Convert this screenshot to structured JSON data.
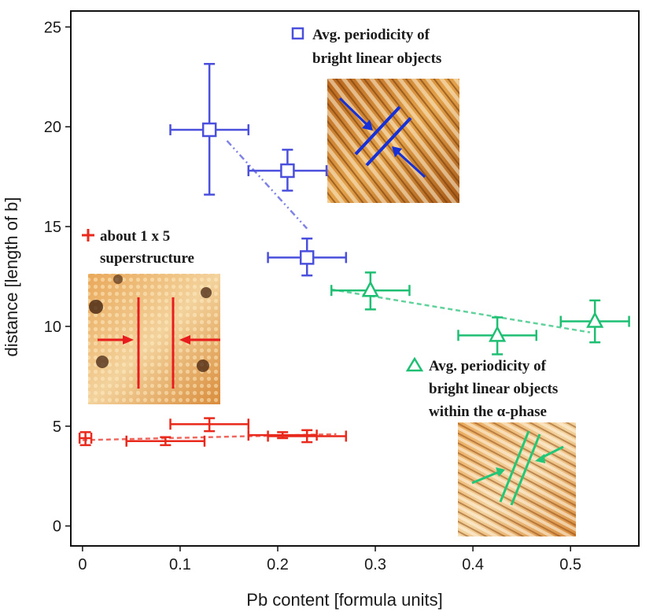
{
  "chart_data": {
    "type": "scatter",
    "xlabel": "Pb content [formula units]",
    "ylabel": "distance [length of b]",
    "xlim": [
      -0.012,
      0.57
    ],
    "ylim": [
      -1.0,
      25.8
    ],
    "xticks": [
      0,
      0.1,
      0.2,
      0.3,
      0.4,
      0.5
    ],
    "xtick_labels": [
      "0",
      "0.1",
      "0.2",
      "0.3",
      "0.4",
      "0.5"
    ],
    "yticks": [
      0,
      5,
      10,
      15,
      20,
      25
    ],
    "ytick_labels": [
      "0",
      "5",
      "10",
      "15",
      "20",
      "25"
    ],
    "series": [
      {
        "name": "Avg. periodicity of bright linear objects",
        "marker": "square",
        "color": "#4a4fdc",
        "fit_line": [
          [
            0.148,
            19.3
          ],
          [
            0.23,
            14.9
          ]
        ],
        "points": [
          {
            "x": 0.13,
            "y": 19.85,
            "xerr": 0.04,
            "yerr_low": 3.25,
            "yerr_high": 3.3
          },
          {
            "x": 0.21,
            "y": 17.8,
            "xerr": 0.04,
            "yerr_low": 1.0,
            "yerr_high": 1.05
          },
          {
            "x": 0.23,
            "y": 13.45,
            "xerr": 0.04,
            "yerr_low": 0.9,
            "yerr_high": 0.95
          }
        ]
      },
      {
        "name": "Avg. periodicity of bright linear objects within the α-phase",
        "marker": "triangle",
        "color": "#1fbf73",
        "fit_line": [
          [
            0.255,
            11.85
          ],
          [
            0.52,
            9.7
          ]
        ],
        "points": [
          {
            "x": 0.295,
            "y": 11.8,
            "xerr": 0.04,
            "yerr_low": 0.95,
            "yerr_high": 0.9
          },
          {
            "x": 0.425,
            "y": 9.55,
            "xerr": 0.04,
            "yerr_low": 0.95,
            "yerr_high": 0.9
          },
          {
            "x": 0.525,
            "y": 10.25,
            "xerr": 0.035,
            "yerr_low": 1.05,
            "yerr_high": 1.05
          }
        ]
      },
      {
        "name": "about 1 x 5 superstructure",
        "marker": "plus",
        "color": "#e8291c",
        "fit_line": [
          [
            0.0,
            4.3
          ],
          [
            0.26,
            4.6
          ]
        ],
        "points": [
          {
            "x": 0.003,
            "y": 4.4,
            "xerr": 0.006,
            "yerr_low": 0.35,
            "yerr_high": 0.3
          },
          {
            "x": 0.085,
            "y": 4.25,
            "xerr": 0.04,
            "yerr_low": 0.2,
            "yerr_high": 0.2
          },
          {
            "x": 0.13,
            "y": 5.1,
            "xerr": 0.04,
            "yerr_low": 0.35,
            "yerr_high": 0.3
          },
          {
            "x": 0.205,
            "y": 4.55,
            "xerr": 0.035,
            "yerr_low": 0.15,
            "yerr_high": 0.15
          },
          {
            "x": 0.23,
            "y": 4.5,
            "xerr": 0.04,
            "yerr_low": 0.3,
            "yerr_high": 0.3
          }
        ]
      }
    ],
    "annotations": {
      "blue_legend": [
        "Avg. periodicity of",
        "bright linear objects"
      ],
      "red_legend": [
        "about 1 x 5",
        "superstructure"
      ],
      "green_legend": [
        "Avg. periodicity of",
        "bright linear objects",
        "within the α-phase"
      ]
    }
  },
  "colors": {
    "blue": "#4a4fdc",
    "green": "#1fbf73",
    "red": "#e8291c"
  }
}
